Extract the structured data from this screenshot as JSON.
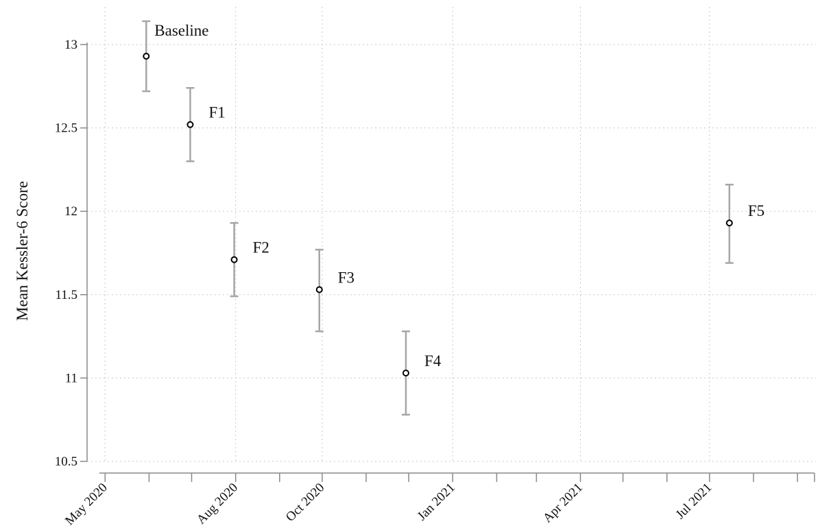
{
  "chart_data": {
    "type": "scatter",
    "title": "",
    "xlabel": "",
    "ylabel": "Mean Kessler-6 Score",
    "ylim": [
      10.5,
      13.15
    ],
    "xlim": [
      "2020-04-27",
      "2021-09-13"
    ],
    "y_ticks": [
      {
        "value": 10.5,
        "label": "10.5"
      },
      {
        "value": 11,
        "label": "11"
      },
      {
        "value": 11.5,
        "label": "11.5"
      },
      {
        "value": 12,
        "label": "12"
      },
      {
        "value": 12.5,
        "label": "12.5"
      },
      {
        "value": 13,
        "label": "13"
      }
    ],
    "x_labeled_ticks": [
      {
        "date": "2020-05-01",
        "label": "May 2020"
      },
      {
        "date": "2020-08-01",
        "label": "Aug 2020"
      },
      {
        "date": "2020-10-01",
        "label": "Oct 2020"
      },
      {
        "date": "2021-01-01",
        "label": "Jan 2021"
      },
      {
        "date": "2021-04-01",
        "label": "Apr 2021"
      },
      {
        "date": "2021-07-01",
        "label": "Jul 2021"
      }
    ],
    "x_minor_ticks": [
      "2020-06-01",
      "2020-07-01",
      "2020-09-01",
      "2020-11-01",
      "2020-12-01",
      "2021-02-01",
      "2021-03-01",
      "2021-05-01",
      "2021-06-01",
      "2021-08-01",
      "2021-09-01"
    ],
    "grid": true,
    "points": [
      {
        "label": "Baseline",
        "date": "2020-05-30",
        "mean": 12.93,
        "ci_low": 12.72,
        "ci_high": 13.14
      },
      {
        "label": "F1",
        "date": "2020-06-30",
        "mean": 12.52,
        "ci_low": 12.3,
        "ci_high": 12.74
      },
      {
        "label": "F2",
        "date": "2020-07-31",
        "mean": 11.71,
        "ci_low": 11.49,
        "ci_high": 11.93
      },
      {
        "label": "F3",
        "date": "2020-09-29",
        "mean": 11.53,
        "ci_low": 11.28,
        "ci_high": 11.77
      },
      {
        "label": "F4",
        "date": "2020-11-29",
        "mean": 11.03,
        "ci_low": 10.78,
        "ci_high": 11.28
      },
      {
        "label": "F5",
        "date": "2021-07-15",
        "mean": 11.93,
        "ci_low": 11.69,
        "ci_high": 12.16
      }
    ]
  },
  "colors": {
    "marker": "#000000",
    "error_bar": "#a6a6a6",
    "axis": "#888888",
    "grid": "#c8c8c8"
  }
}
